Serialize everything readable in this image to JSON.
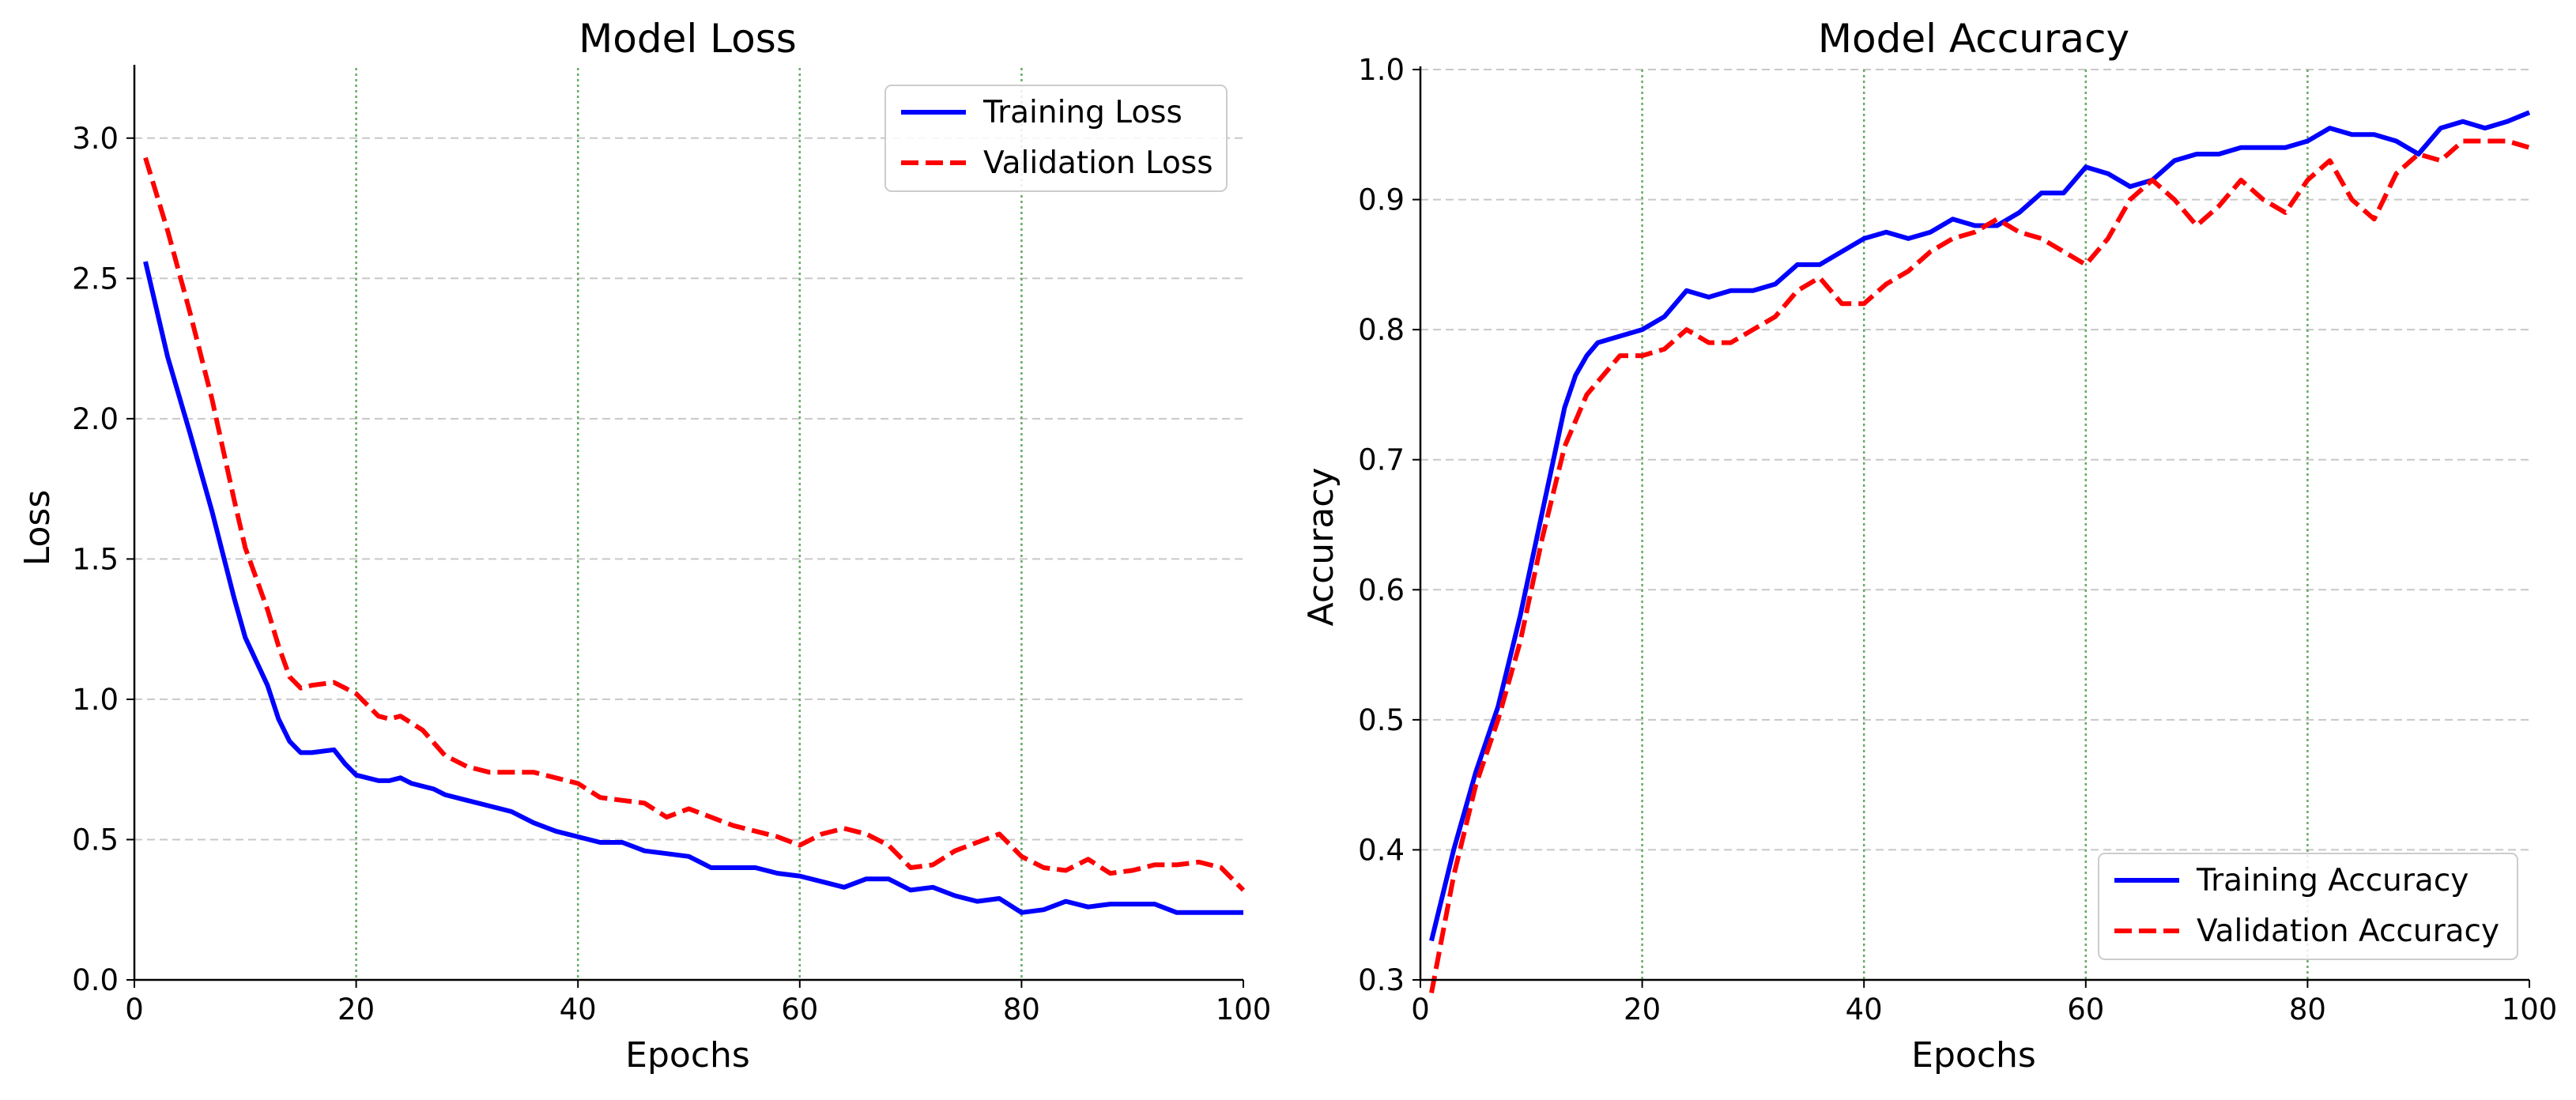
{
  "colors": {
    "training": "#0000ff",
    "validation": "#ff0000",
    "grid_h": "#c8c8c8",
    "grid_v": "#66aa66"
  },
  "chart_data": [
    {
      "type": "line",
      "title": "Model Loss",
      "xlabel": "Epochs",
      "ylabel": "Loss",
      "xlim": [
        0,
        100
      ],
      "ylim": [
        0,
        3.25
      ],
      "xticks": [
        0,
        20,
        40,
        60,
        80,
        100
      ],
      "xtick_labels": [
        "0",
        "20",
        "40",
        "60",
        "80",
        "100"
      ],
      "yticks": [
        0,
        0.5,
        1.0,
        1.5,
        2.0,
        2.5,
        3.0
      ],
      "ytick_labels": [
        "0.0",
        "0.5",
        "1.0",
        "1.5",
        "2.0",
        "2.5",
        "3.0"
      ],
      "grid": "horizontal dashed (y), vertical dotted green at 20/40/60/80",
      "legend_position": "top-right",
      "series": [
        {
          "name": "Training Loss",
          "style": "solid",
          "color_key": "training",
          "x": [
            1,
            3,
            5,
            7,
            9,
            10,
            12,
            13,
            14,
            15,
            16,
            18,
            19,
            20,
            22,
            23,
            24,
            25,
            27,
            28,
            30,
            32,
            34,
            36,
            38,
            40,
            42,
            44,
            46,
            48,
            50,
            52,
            54,
            56,
            58,
            60,
            62,
            64,
            66,
            68,
            70,
            72,
            74,
            76,
            78,
            80,
            82,
            84,
            86,
            88,
            90,
            92,
            94,
            96,
            98,
            100
          ],
          "values": [
            2.56,
            2.22,
            1.95,
            1.67,
            1.36,
            1.22,
            1.05,
            0.93,
            0.85,
            0.81,
            0.81,
            0.82,
            0.77,
            0.73,
            0.71,
            0.71,
            0.72,
            0.7,
            0.68,
            0.66,
            0.64,
            0.62,
            0.6,
            0.56,
            0.53,
            0.51,
            0.49,
            0.49,
            0.46,
            0.45,
            0.44,
            0.4,
            0.4,
            0.4,
            0.38,
            0.37,
            0.35,
            0.33,
            0.36,
            0.36,
            0.32,
            0.33,
            0.3,
            0.28,
            0.29,
            0.24,
            0.25,
            0.28,
            0.26,
            0.27,
            0.27,
            0.27,
            0.24,
            0.24,
            0.24,
            0.24
          ]
        },
        {
          "name": "Validation Loss",
          "style": "dashed",
          "color_key": "validation",
          "x": [
            1,
            3,
            5,
            7,
            9,
            10,
            12,
            13,
            14,
            15,
            16,
            18,
            19,
            20,
            22,
            23,
            24,
            26,
            28,
            30,
            32,
            34,
            36,
            38,
            40,
            42,
            44,
            46,
            48,
            50,
            52,
            54,
            56,
            58,
            60,
            62,
            64,
            66,
            68,
            70,
            72,
            74,
            76,
            78,
            80,
            82,
            84,
            86,
            88,
            90,
            92,
            94,
            96,
            98,
            100
          ],
          "values": [
            2.93,
            2.67,
            2.38,
            2.07,
            1.71,
            1.54,
            1.32,
            1.19,
            1.08,
            1.04,
            1.05,
            1.06,
            1.04,
            1.02,
            0.94,
            0.93,
            0.94,
            0.89,
            0.8,
            0.76,
            0.74,
            0.74,
            0.74,
            0.72,
            0.7,
            0.65,
            0.64,
            0.63,
            0.58,
            0.61,
            0.58,
            0.55,
            0.53,
            0.51,
            0.48,
            0.52,
            0.54,
            0.52,
            0.48,
            0.4,
            0.41,
            0.46,
            0.49,
            0.52,
            0.44,
            0.4,
            0.39,
            0.43,
            0.38,
            0.39,
            0.41,
            0.41,
            0.42,
            0.4,
            0.32
          ]
        }
      ]
    },
    {
      "type": "line",
      "title": "Model Accuracy",
      "xlabel": "Epochs",
      "ylabel": "Accuracy",
      "xlim": [
        0,
        100
      ],
      "ylim": [
        0.3,
        1.0
      ],
      "xticks": [
        0,
        20,
        40,
        60,
        80,
        100
      ],
      "xtick_labels": [
        "0",
        "20",
        "40",
        "60",
        "80",
        "100"
      ],
      "yticks": [
        0.3,
        0.4,
        0.5,
        0.6,
        0.7,
        0.8,
        0.9,
        1.0
      ],
      "ytick_labels": [
        "0.3",
        "0.4",
        "0.5",
        "0.6",
        "0.7",
        "0.8",
        "0.9",
        "1.0"
      ],
      "grid": "horizontal dashed (y), vertical dotted green at 20/40/60/80",
      "legend_position": "bottom-right",
      "series": [
        {
          "name": "Training Accuracy",
          "style": "solid",
          "color_key": "training",
          "x": [
            1,
            3,
            5,
            7,
            9,
            11,
            13,
            14,
            15,
            16,
            18,
            20,
            22,
            24,
            26,
            28,
            30,
            32,
            34,
            36,
            38,
            40,
            42,
            44,
            46,
            48,
            50,
            52,
            54,
            56,
            58,
            60,
            62,
            64,
            66,
            68,
            70,
            72,
            74,
            76,
            78,
            80,
            82,
            84,
            86,
            88,
            90,
            92,
            94,
            96,
            98,
            100
          ],
          "values": [
            0.33,
            0.4,
            0.46,
            0.51,
            0.58,
            0.66,
            0.74,
            0.765,
            0.78,
            0.79,
            0.795,
            0.8,
            0.81,
            0.83,
            0.825,
            0.83,
            0.83,
            0.835,
            0.85,
            0.85,
            0.86,
            0.87,
            0.875,
            0.87,
            0.875,
            0.885,
            0.88,
            0.88,
            0.89,
            0.905,
            0.905,
            0.925,
            0.92,
            0.91,
            0.915,
            0.93,
            0.935,
            0.935,
            0.94,
            0.94,
            0.94,
            0.945,
            0.955,
            0.95,
            0.95,
            0.945,
            0.935,
            0.955,
            0.96,
            0.955,
            0.96,
            0.967
          ]
        },
        {
          "name": "Validation Accuracy",
          "style": "dashed",
          "color_key": "validation",
          "x": [
            1,
            3,
            5,
            7,
            9,
            11,
            13,
            15,
            17,
            18,
            20,
            22,
            24,
            26,
            28,
            30,
            32,
            34,
            36,
            38,
            40,
            42,
            44,
            46,
            48,
            50,
            52,
            54,
            56,
            58,
            60,
            62,
            64,
            66,
            68,
            70,
            72,
            74,
            76,
            78,
            80,
            82,
            84,
            86,
            88,
            90,
            92,
            94,
            96,
            98,
            100
          ],
          "values": [
            0.29,
            0.38,
            0.45,
            0.5,
            0.56,
            0.64,
            0.71,
            0.75,
            0.77,
            0.78,
            0.78,
            0.785,
            0.8,
            0.79,
            0.79,
            0.8,
            0.81,
            0.83,
            0.84,
            0.82,
            0.82,
            0.835,
            0.845,
            0.86,
            0.87,
            0.875,
            0.885,
            0.875,
            0.87,
            0.86,
            0.85,
            0.87,
            0.9,
            0.915,
            0.9,
            0.88,
            0.895,
            0.915,
            0.9,
            0.89,
            0.915,
            0.93,
            0.9,
            0.885,
            0.92,
            0.935,
            0.93,
            0.945,
            0.945,
            0.945,
            0.94
          ]
        }
      ]
    }
  ]
}
